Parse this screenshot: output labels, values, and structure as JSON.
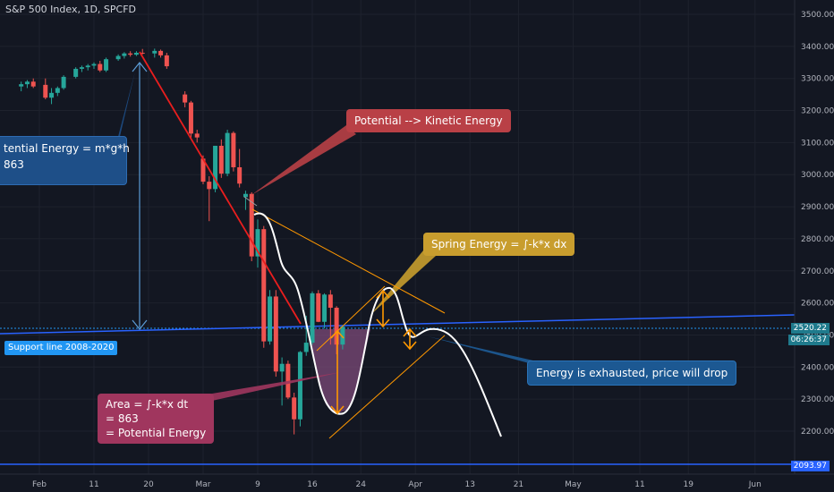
{
  "header": {
    "title": "S&P 500 Index, 1D, SPCFD"
  },
  "colors": {
    "background": "#131722",
    "up": "#26a69a",
    "down": "#ef5350",
    "trend_red": "#e91e1e",
    "support_blue": "#2962ff",
    "yellow": "#f5c518",
    "orange": "#ff9800",
    "white": "#ffffff",
    "area_fill": "#7e4b7a"
  },
  "annotations": {
    "potential_energy": "tential Energy = m*g*h\n863",
    "potential_kinetic": "Potential --> Kinetic Energy",
    "spring_energy": "Spring Energy = ∫-k*x dx",
    "energy_exhausted": "Energy is exhausted, price will drop",
    "area": "Area = ∫-k*x dt\n= 863\n= Potential Energy",
    "support_line": "Support line 2008-2020"
  },
  "price_tags": {
    "current": "2520.22",
    "countdown": "06:26:37",
    "support_low": "2093.97"
  },
  "chart_data": {
    "type": "candlestick",
    "title": "S&P 500 Index, 1D, SPCFD",
    "y_ticks": [
      "3500.00",
      "3400.00",
      "3300.00",
      "3200.00",
      "3100.00",
      "3000.00",
      "2900.00",
      "2800.00",
      "2700.00",
      "2600.00",
      "2500.00",
      "2400.00",
      "2300.00",
      "2200.00"
    ],
    "y_tick_values": [
      3500,
      3400,
      3300,
      3200,
      3100,
      3000,
      2900,
      2800,
      2700,
      2600,
      2500,
      2400,
      2300,
      2200
    ],
    "x_ticks": [
      "Feb",
      "11",
      "20",
      "Mar",
      "9",
      "16",
      "24",
      "Apr",
      "13",
      "21",
      "May",
      "11",
      "19",
      "Jun"
    ],
    "x_tick_days": [
      0,
      9,
      18,
      27,
      36,
      45,
      53,
      62,
      71,
      79,
      88,
      99,
      107,
      118
    ],
    "ylim": [
      2080,
      3550
    ],
    "xlim": [
      -4,
      122
    ],
    "candles": [
      {
        "d": -3,
        "o": 3275,
        "h": 3290,
        "l": 3260,
        "c": 3282
      },
      {
        "d": -2,
        "o": 3282,
        "h": 3295,
        "l": 3270,
        "c": 3290
      },
      {
        "d": -1,
        "o": 3290,
        "h": 3300,
        "l": 3270,
        "c": 3275
      },
      {
        "d": 1,
        "o": 3280,
        "h": 3300,
        "l": 3235,
        "c": 3240
      },
      {
        "d": 2,
        "o": 3240,
        "h": 3270,
        "l": 3220,
        "c": 3255
      },
      {
        "d": 3,
        "o": 3255,
        "h": 3275,
        "l": 3245,
        "c": 3270
      },
      {
        "d": 4,
        "o": 3270,
        "h": 3310,
        "l": 3265,
        "c": 3305
      },
      {
        "d": 6,
        "o": 3305,
        "h": 3335,
        "l": 3300,
        "c": 3330
      },
      {
        "d": 7,
        "o": 3330,
        "h": 3340,
        "l": 3320,
        "c": 3335
      },
      {
        "d": 8,
        "o": 3335,
        "h": 3345,
        "l": 3325,
        "c": 3340
      },
      {
        "d": 9,
        "o": 3340,
        "h": 3350,
        "l": 3330,
        "c": 3345
      },
      {
        "d": 10,
        "o": 3345,
        "h": 3355,
        "l": 3320,
        "c": 3325
      },
      {
        "d": 11,
        "o": 3325,
        "h": 3365,
        "l": 3320,
        "c": 3360
      },
      {
        "d": 13,
        "o": 3360,
        "h": 3375,
        "l": 3355,
        "c": 3370
      },
      {
        "d": 14,
        "o": 3370,
        "h": 3382,
        "l": 3362,
        "c": 3378
      },
      {
        "d": 15,
        "o": 3378,
        "h": 3385,
        "l": 3368,
        "c": 3374
      },
      {
        "d": 16,
        "o": 3374,
        "h": 3385,
        "l": 3370,
        "c": 3380
      },
      {
        "d": 17,
        "o": 3380,
        "h": 3392,
        "l": 3375,
        "c": 3378
      },
      {
        "d": 19,
        "o": 3378,
        "h": 3393,
        "l": 3365,
        "c": 3386
      },
      {
        "d": 20,
        "o": 3386,
        "h": 3390,
        "l": 3365,
        "c": 3372
      },
      {
        "d": 21,
        "o": 3372,
        "h": 3380,
        "l": 3330,
        "c": 3338
      },
      {
        "d": 24,
        "o": 3250,
        "h": 3260,
        "l": 3210,
        "c": 3225
      },
      {
        "d": 25,
        "o": 3225,
        "h": 3230,
        "l": 3110,
        "c": 3128
      },
      {
        "d": 26,
        "o": 3128,
        "h": 3140,
        "l": 3100,
        "c": 3116
      },
      {
        "d": 27,
        "o": 3050,
        "h": 3060,
        "l": 2970,
        "c": 2978
      },
      {
        "d": 28,
        "o": 2978,
        "h": 2995,
        "l": 2855,
        "c": 2955
      },
      {
        "d": 29,
        "o": 2955,
        "h": 3090,
        "l": 2945,
        "c": 3090
      },
      {
        "d": 30,
        "o": 3090,
        "h": 3110,
        "l": 2990,
        "c": 3003
      },
      {
        "d": 31,
        "o": 3003,
        "h": 3140,
        "l": 2995,
        "c": 3130
      },
      {
        "d": 32,
        "o": 3130,
        "h": 3135,
        "l": 3010,
        "c": 3023
      },
      {
        "d": 33,
        "o": 3023,
        "h": 3080,
        "l": 2960,
        "c": 2972
      },
      {
        "d": 34,
        "o": 2930,
        "h": 2950,
        "l": 2890,
        "c": 2940
      },
      {
        "d": 35,
        "o": 2940,
        "h": 2945,
        "l": 2730,
        "c": 2745
      },
      {
        "d": 36,
        "o": 2745,
        "h": 2860,
        "l": 2710,
        "c": 2830
      },
      {
        "d": 37,
        "o": 2830,
        "h": 2840,
        "l": 2460,
        "c": 2480
      },
      {
        "d": 38,
        "o": 2480,
        "h": 2640,
        "l": 2470,
        "c": 2620
      },
      {
        "d": 39,
        "o": 2620,
        "h": 2640,
        "l": 2370,
        "c": 2386
      },
      {
        "d": 40,
        "o": 2386,
        "h": 2430,
        "l": 2280,
        "c": 2410
      },
      {
        "d": 41,
        "o": 2410,
        "h": 2420,
        "l": 2300,
        "c": 2305
      },
      {
        "d": 42,
        "o": 2305,
        "h": 2320,
        "l": 2190,
        "c": 2237
      },
      {
        "d": 43,
        "o": 2237,
        "h": 2450,
        "l": 2215,
        "c": 2447
      },
      {
        "d": 44,
        "o": 2447,
        "h": 2560,
        "l": 2435,
        "c": 2476
      },
      {
        "d": 45,
        "o": 2476,
        "h": 2636,
        "l": 2470,
        "c": 2630
      },
      {
        "d": 46,
        "o": 2630,
        "h": 2640,
        "l": 2540,
        "c": 2541
      },
      {
        "d": 47,
        "o": 2541,
        "h": 2630,
        "l": 2520,
        "c": 2626
      },
      {
        "d": 48,
        "o": 2626,
        "h": 2640,
        "l": 2470,
        "c": 2585
      },
      {
        "d": 49,
        "o": 2585,
        "h": 2590,
        "l": 2440,
        "c": 2470
      },
      {
        "d": 50,
        "o": 2470,
        "h": 2530,
        "l": 2455,
        "c": 2526
      }
    ]
  }
}
